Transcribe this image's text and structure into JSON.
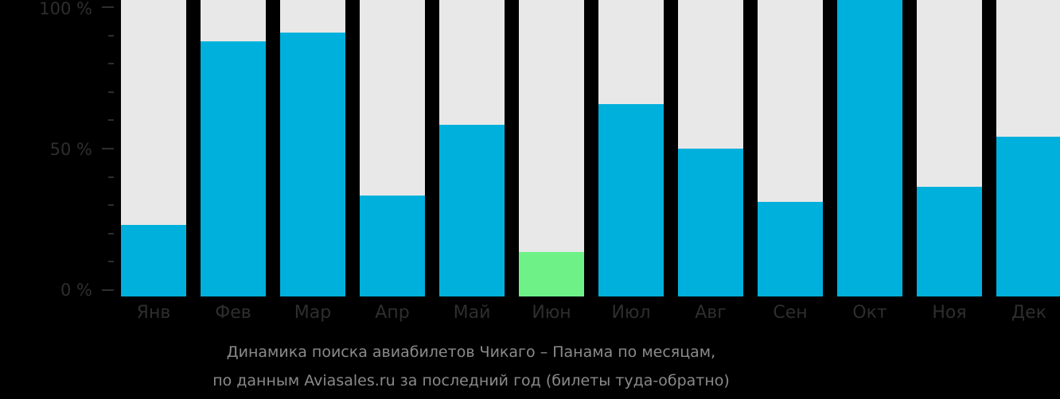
{
  "chart_data": {
    "type": "bar",
    "title": "Динамика поиска авиабилетов Чикаго – Панама по месяцам,",
    "subtitle": "по данным Aviasales.ru за последний год (билеты туда-обратно)",
    "xlabel": "",
    "ylabel": "",
    "ylim": [
      0,
      100
    ],
    "y_ticks": [
      "0 %",
      "50 %",
      "100 %"
    ],
    "categories": [
      "Янв",
      "Фев",
      "Мар",
      "Апр",
      "Май",
      "Июн",
      "Июл",
      "Авг",
      "Сен",
      "Окт",
      "Ноя",
      "Дек"
    ],
    "values": [
      24,
      86,
      89,
      34,
      58,
      15,
      65,
      50,
      32,
      100,
      37,
      54
    ],
    "highlight_index": 5,
    "grid": false,
    "legend": "none",
    "colors": {
      "bar": "#00b0dc",
      "highlight": "#6ef287",
      "track": "#e8e8e8",
      "background": "#000000"
    }
  }
}
